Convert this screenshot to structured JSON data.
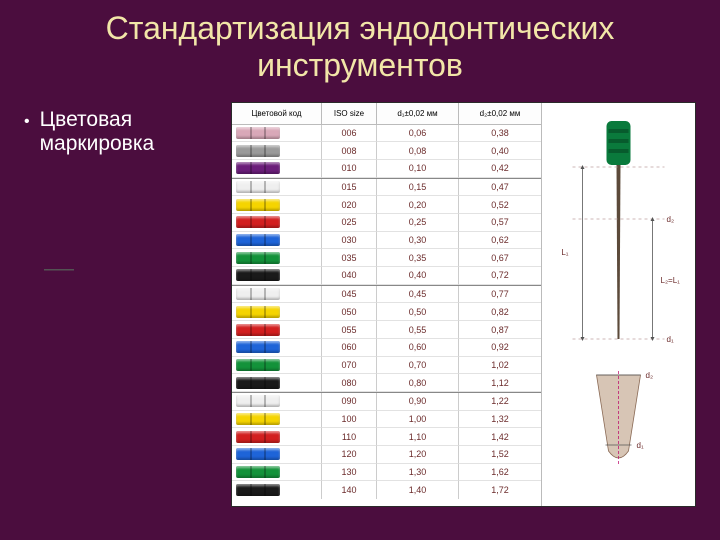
{
  "slide": {
    "background_color": "#4b0d3e",
    "title_color": "#f2e6a8",
    "text_color": "#ffffff",
    "title": "Стандартизация эндодонтических инструментов",
    "bullet": "Цветовая маркировка"
  },
  "figure": {
    "background_color": "#ffffff",
    "headers": {
      "color_code": "Цветовой код",
      "iso": "ISO size",
      "d1": "d₁±0,02 мм",
      "d2": "d₂±0,02 мм"
    },
    "groups": [
      {
        "rows": [
          {
            "color": "#d9a8b8",
            "iso": "006",
            "d1": "0,06",
            "d2": "0,38"
          },
          {
            "color": "#9a9a9a",
            "iso": "008",
            "d1": "0,08",
            "d2": "0,40"
          },
          {
            "color": "#6b1e7a",
            "iso": "010",
            "d1": "0,10",
            "d2": "0,42"
          }
        ]
      },
      {
        "rows": [
          {
            "color": "#efefef",
            "iso": "015",
            "d1": "0,15",
            "d2": "0,47"
          },
          {
            "color": "#f5d400",
            "iso": "020",
            "d1": "0,20",
            "d2": "0,52"
          },
          {
            "color": "#d21f1f",
            "iso": "025",
            "d1": "0,25",
            "d2": "0,57"
          },
          {
            "color": "#1e64d8",
            "iso": "030",
            "d1": "0,30",
            "d2": "0,62"
          },
          {
            "color": "#13923a",
            "iso": "035",
            "d1": "0,35",
            "d2": "0,67"
          },
          {
            "color": "#1a1a1a",
            "iso": "040",
            "d1": "0,40",
            "d2": "0,72"
          }
        ]
      },
      {
        "rows": [
          {
            "color": "#efefef",
            "iso": "045",
            "d1": "0,45",
            "d2": "0,77"
          },
          {
            "color": "#f5d400",
            "iso": "050",
            "d1": "0,50",
            "d2": "0,82"
          },
          {
            "color": "#d21f1f",
            "iso": "055",
            "d1": "0,55",
            "d2": "0,87"
          },
          {
            "color": "#1e64d8",
            "iso": "060",
            "d1": "0,60",
            "d2": "0,92"
          },
          {
            "color": "#13923a",
            "iso": "070",
            "d1": "0,70",
            "d2": "1,02"
          },
          {
            "color": "#1a1a1a",
            "iso": "080",
            "d1": "0,80",
            "d2": "1,12"
          }
        ]
      },
      {
        "rows": [
          {
            "color": "#efefef",
            "iso": "090",
            "d1": "0,90",
            "d2": "1,22"
          },
          {
            "color": "#f5d400",
            "iso": "100",
            "d1": "1,00",
            "d2": "1,32"
          },
          {
            "color": "#d21f1f",
            "iso": "110",
            "d1": "1,10",
            "d2": "1,42"
          },
          {
            "color": "#1e64d8",
            "iso": "120",
            "d1": "1,20",
            "d2": "1,52"
          },
          {
            "color": "#13923a",
            "iso": "130",
            "d1": "1,30",
            "d2": "1,62"
          },
          {
            "color": "#1a1a1a",
            "iso": "140",
            "d1": "1,40",
            "d2": "1,72"
          }
        ]
      }
    ],
    "diagram": {
      "file_handle_color": "#0a7a3c",
      "shaft_color": "#5c4a3a",
      "dash_color": "#bfa0a0",
      "labels": {
        "d1": "d₁",
        "d2": "d₂",
        "L1": "L₁",
        "L2": "L₂=L₁"
      }
    }
  }
}
